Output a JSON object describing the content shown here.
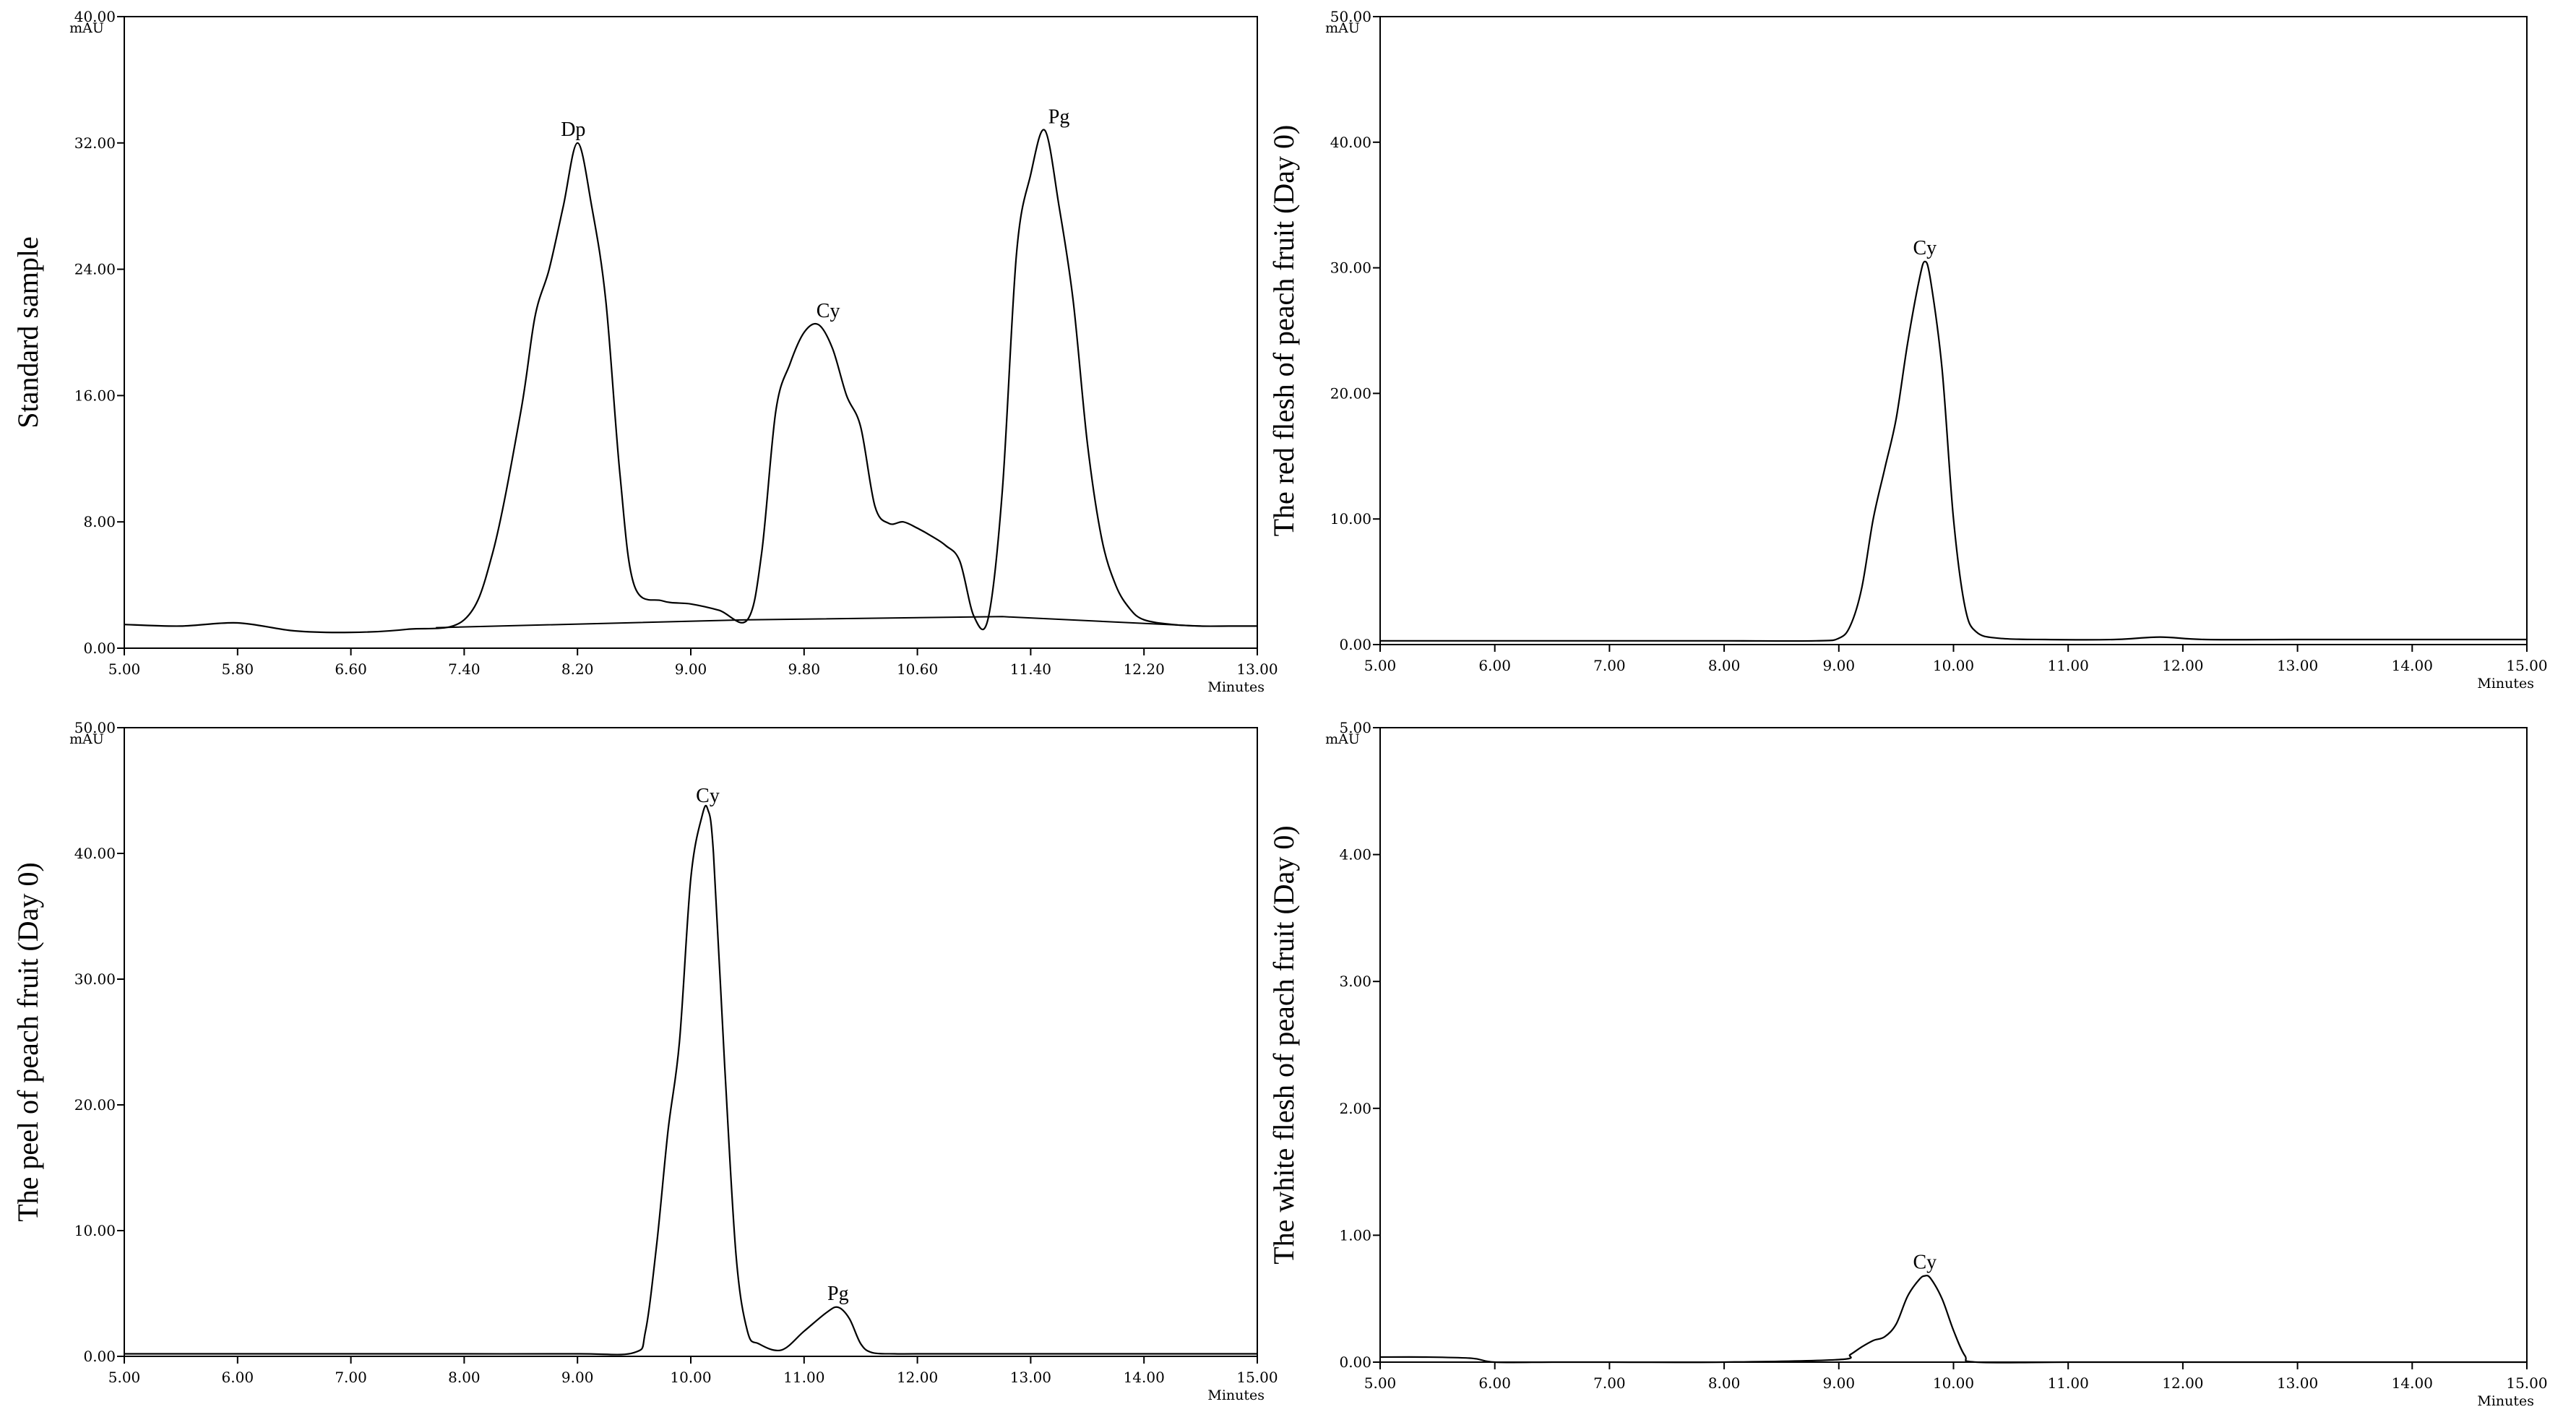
{
  "chart_data": [
    {
      "type": "line",
      "ylabel": "Standard sample",
      "xlabel": "Minutes",
      "yunit": "mAU",
      "xlim": [
        5.0,
        13.0
      ],
      "ylim": [
        0.0,
        40.0
      ],
      "xticks": [
        "5.00",
        "5.80",
        "6.60",
        "7.40",
        "8.20",
        "9.00",
        "9.80",
        "10.60",
        "11.40",
        "12.20",
        "13.00"
      ],
      "yticks": [
        "0.00",
        "8.00",
        "16.00",
        "24.00",
        "32.00",
        "40.00"
      ],
      "series": [
        {
          "x": [
            5.0,
            5.4,
            5.8,
            6.2,
            6.6,
            7.0,
            7.4,
            7.6,
            7.8,
            7.9,
            8.0,
            8.1,
            8.2,
            8.3,
            8.4,
            8.5,
            8.6,
            8.8,
            9.0,
            9.2,
            9.4,
            9.5,
            9.6,
            9.7,
            9.8,
            9.9,
            10.0,
            10.1,
            10.2,
            10.3,
            10.4,
            10.5,
            10.6,
            10.7,
            10.8,
            10.9,
            11.0,
            11.1,
            11.2,
            11.3,
            11.4,
            11.5,
            11.6,
            11.7,
            11.8,
            11.9,
            12.0,
            12.1,
            12.2,
            12.4,
            12.6,
            12.8,
            13.0
          ],
          "y": [
            1.5,
            1.4,
            1.6,
            1.1,
            1.0,
            1.2,
            1.8,
            6,
            15,
            21,
            24,
            28,
            32,
            28,
            22,
            11,
            4,
            3,
            2.8,
            2.4,
            1.8,
            6,
            15,
            18,
            20,
            20.5,
            19,
            16,
            14,
            9,
            7.9,
            8,
            7.6,
            7.1,
            6.5,
            5.5,
            2.0,
            1.9,
            10,
            25,
            30,
            32.8,
            28,
            22,
            13,
            7,
            4,
            2.5,
            1.8,
            1.5,
            1.4,
            1.4,
            1.4
          ]
        }
      ],
      "baseline": {
        "x": [
          7.2,
          9.4,
          11.2,
          12.6
        ],
        "y": [
          1.3,
          1.8,
          2.0,
          1.4
        ]
      },
      "annotations": [
        {
          "text": "Dp",
          "x": 8.17,
          "y": 32
        },
        {
          "text": "Cy",
          "x": 9.97,
          "y": 20.5
        },
        {
          "text": "Pg",
          "x": 11.6,
          "y": 32.8
        }
      ]
    },
    {
      "type": "line",
      "ylabel": "The red flesh of peach fruit (Day 0)",
      "xlabel": "Minutes",
      "yunit": "mAU",
      "xlim": [
        5.0,
        15.0
      ],
      "ylim": [
        0.0,
        50.0
      ],
      "xticks": [
        "5.00",
        "6.00",
        "7.00",
        "8.00",
        "9.00",
        "10.00",
        "11.00",
        "12.00",
        "13.00",
        "14.00",
        "15.00"
      ],
      "yticks": [
        "0.00",
        "10.00",
        "20.00",
        "30.00",
        "40.00",
        "50.00"
      ],
      "series": [
        {
          "x": [
            5.0,
            6.0,
            7.0,
            8.0,
            8.8,
            9.0,
            9.1,
            9.2,
            9.3,
            9.4,
            9.5,
            9.6,
            9.7,
            9.75,
            9.8,
            9.9,
            10.0,
            10.1,
            10.2,
            10.4,
            10.8,
            11.4,
            11.8,
            12.2,
            13.0,
            14.0,
            15.0
          ],
          "y": [
            0.3,
            0.3,
            0.3,
            0.3,
            0.3,
            0.5,
            1.5,
            4.5,
            10,
            14,
            18,
            24,
            29,
            30.5,
            29,
            22,
            10,
            3,
            1,
            0.5,
            0.4,
            0.4,
            0.6,
            0.4,
            0.4,
            0.4,
            0.4
          ]
        }
      ],
      "annotations": [
        {
          "text": "Cy",
          "x": 9.75,
          "y": 30.5
        }
      ]
    },
    {
      "type": "line",
      "ylabel": "The peel of peach fruit (Day 0)",
      "xlabel": "Minutes",
      "yunit": "mAU",
      "xlim": [
        5.0,
        15.0
      ],
      "ylim": [
        0.0,
        50.0
      ],
      "xticks": [
        "5.00",
        "6.00",
        "7.00",
        "8.00",
        "9.00",
        "10.00",
        "11.00",
        "12.00",
        "13.00",
        "14.00",
        "15.00"
      ],
      "yticks": [
        "0.00",
        "10.00",
        "20.00",
        "30.00",
        "40.00",
        "50.00"
      ],
      "series": [
        {
          "x": [
            5.0,
            6.0,
            7.0,
            8.0,
            9.0,
            9.5,
            9.6,
            9.7,
            9.8,
            9.9,
            10.0,
            10.1,
            10.15,
            10.2,
            10.3,
            10.4,
            10.5,
            10.6,
            10.8,
            11.0,
            11.2,
            11.3,
            11.4,
            11.5,
            11.6,
            11.8,
            12.0,
            13.0,
            14.0,
            15.0
          ],
          "y": [
            0.2,
            0.2,
            0.2,
            0.2,
            0.2,
            0.3,
            2,
            9,
            18,
            25,
            38,
            43,
            43.5,
            40,
            23,
            8,
            2,
            1,
            0.5,
            2,
            3.5,
            3.9,
            3,
            1,
            0.3,
            0.2,
            0.2,
            0.2,
            0.2,
            0.2
          ]
        }
      ],
      "annotations": [
        {
          "text": "Cy",
          "x": 10.15,
          "y": 43.5
        },
        {
          "text": "Pg",
          "x": 11.3,
          "y": 3.9
        }
      ]
    },
    {
      "type": "line",
      "ylabel": "The white flesh of peach fruit (Day 0)",
      "xlabel": "Minutes",
      "yunit": "mAU",
      "xlim": [
        5.0,
        15.0
      ],
      "ylim": [
        0.0,
        5.0
      ],
      "xticks": [
        "5.00",
        "6.00",
        "7.00",
        "8.00",
        "9.00",
        "10.00",
        "11.00",
        "12.00",
        "13.00",
        "14.00",
        "15.00"
      ],
      "yticks": [
        "0.00",
        "1.00",
        "2.00",
        "3.00",
        "4.00",
        "5.00"
      ],
      "series": [
        {
          "x": [
            5.0,
            5.4,
            5.8,
            6.0,
            6.5,
            7.0,
            8.0,
            9.0,
            9.1,
            9.2,
            9.3,
            9.4,
            9.5,
            9.6,
            9.7,
            9.75,
            9.8,
            9.9,
            10.0,
            10.1,
            10.2,
            11.0,
            12.0,
            13.0,
            14.0,
            15.0
          ],
          "y": [
            0.04,
            0.04,
            0.03,
            0.0,
            0.0,
            0.0,
            0.0,
            0.02,
            0.06,
            0.12,
            0.17,
            0.2,
            0.3,
            0.52,
            0.65,
            0.68,
            0.66,
            0.5,
            0.25,
            0.05,
            0.0,
            0.0,
            0.0,
            0.0,
            0.0,
            0.0
          ]
        }
      ],
      "annotations": [
        {
          "text": "Cy",
          "x": 9.75,
          "y": 0.68
        }
      ]
    }
  ]
}
